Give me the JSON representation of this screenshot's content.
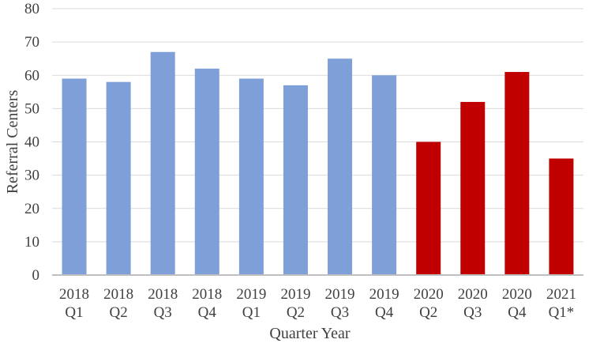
{
  "chart_data": {
    "type": "bar",
    "title": "",
    "xlabel": "Quarter Year",
    "ylabel": "Referral Centers",
    "ylim": [
      0,
      80
    ],
    "yticks": [
      0,
      10,
      20,
      30,
      40,
      50,
      60,
      70,
      80
    ],
    "grid": true,
    "legend": "none",
    "categories": [
      [
        "2018",
        "Q1"
      ],
      [
        "2018",
        "Q2"
      ],
      [
        "2018",
        "Q3"
      ],
      [
        "2018",
        "Q4"
      ],
      [
        "2019",
        "Q1"
      ],
      [
        "2019",
        "Q2"
      ],
      [
        "2019",
        "Q3"
      ],
      [
        "2019",
        "Q4"
      ],
      [
        "2020",
        "Q2"
      ],
      [
        "2020",
        "Q3"
      ],
      [
        "2020",
        "Q4"
      ],
      [
        "2021",
        "Q1*"
      ]
    ],
    "values": [
      59,
      58,
      67,
      62,
      59,
      57,
      65,
      60,
      40,
      52,
      61,
      35
    ],
    "bar_colors": [
      "#7f9fd8",
      "#7f9fd8",
      "#7f9fd8",
      "#7f9fd8",
      "#7f9fd8",
      "#7f9fd8",
      "#7f9fd8",
      "#7f9fd8",
      "#c00000",
      "#c00000",
      "#c00000",
      "#c00000"
    ],
    "grid_color": "#d9d9d9",
    "axis_color": "#bfbfbf"
  }
}
